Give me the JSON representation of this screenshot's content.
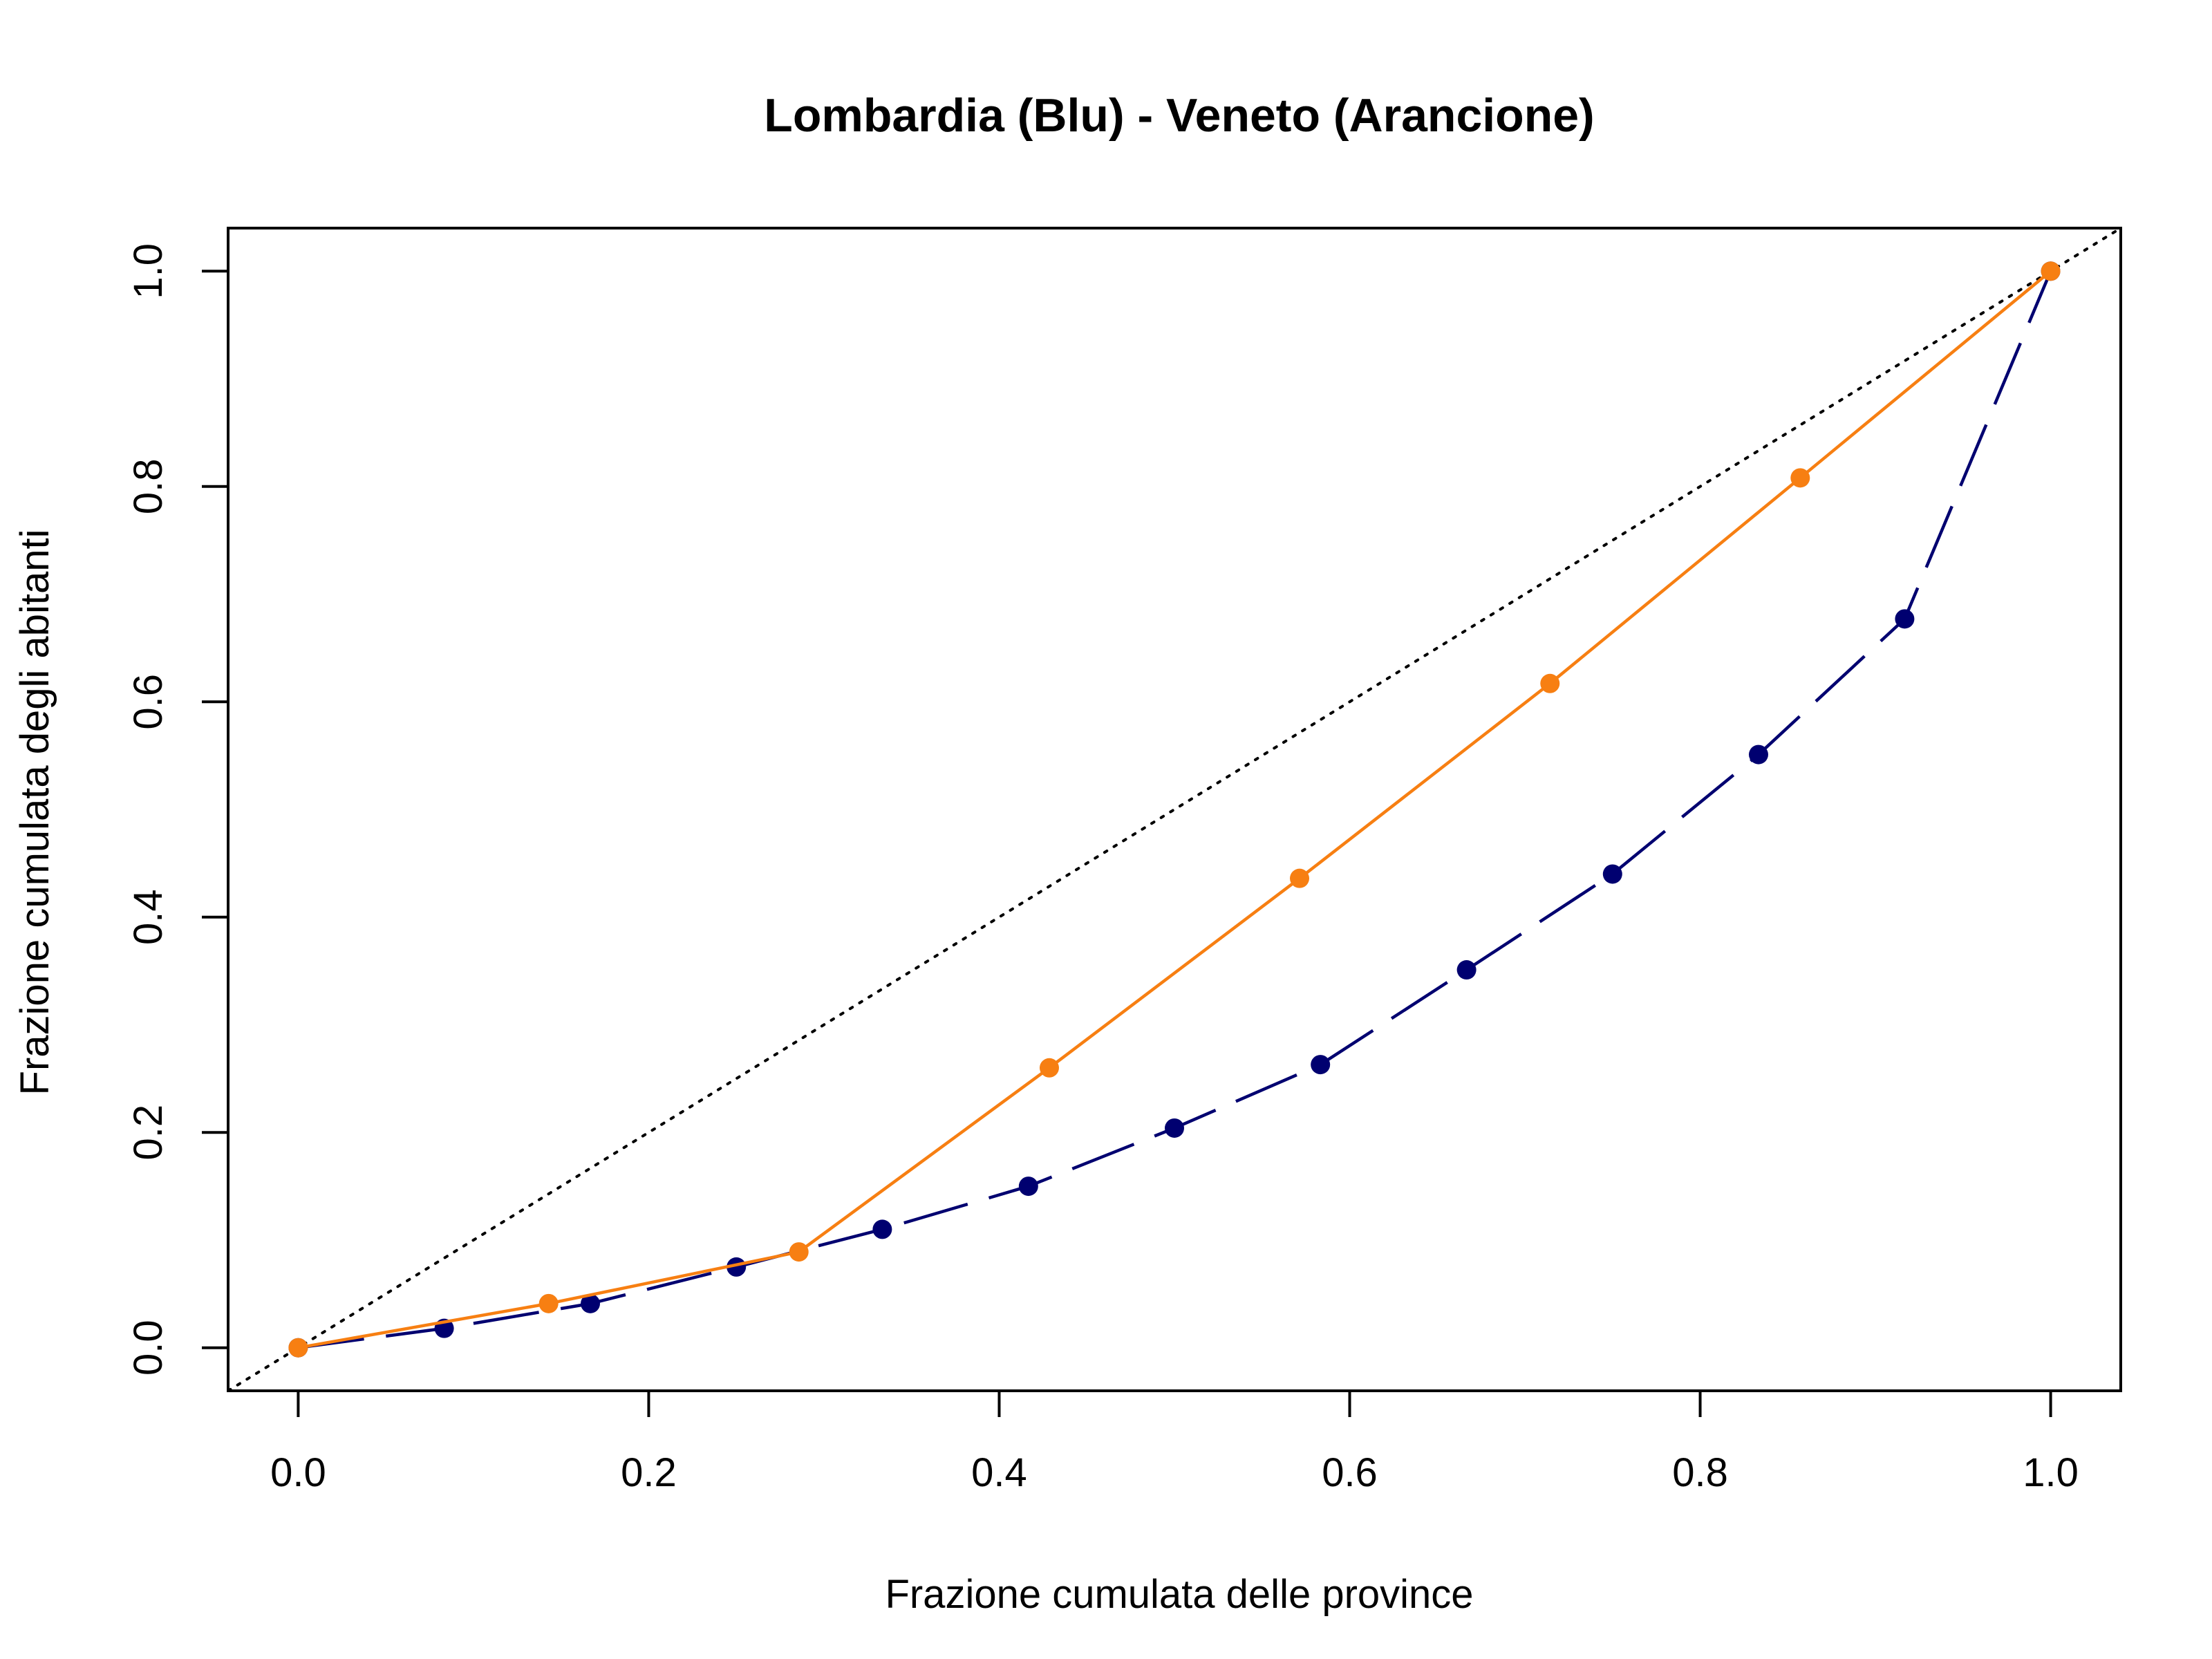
{
  "chart_data": {
    "type": "line",
    "title": "Lombardia (Blu) - Veneto (Arancione)",
    "xlabel": "Frazione cumulata delle province",
    "ylabel": "Frazione cumulata degli abitanti",
    "xlim": [
      -0.04,
      1.04
    ],
    "ylim": [
      -0.04,
      1.04
    ],
    "x_ticks": [
      "0.0",
      "0.2",
      "0.4",
      "0.6",
      "0.8",
      "1.0"
    ],
    "y_ticks": [
      "0.0",
      "0.2",
      "0.4",
      "0.6",
      "0.8",
      "1.0"
    ],
    "grid": false,
    "reference_line": {
      "style": "dotted",
      "color": "#000000",
      "from": [
        0,
        0
      ],
      "to": [
        1,
        1
      ]
    },
    "series": [
      {
        "color": "#000070",
        "line_style": "long-dash",
        "x": [
          0.0,
          0.0833,
          0.1667,
          0.25,
          0.3333,
          0.4167,
          0.5,
          0.5833,
          0.6667,
          0.75,
          0.8333,
          0.9167,
          1.0
        ],
        "y": [
          0.0,
          0.018,
          0.041,
          0.075,
          0.11,
          0.15,
          0.204,
          0.263,
          0.351,
          0.44,
          0.551,
          0.677,
          1.0
        ]
      },
      {
        "color": "#F77F12",
        "line_style": "solid",
        "x": [
          0.0,
          0.1429,
          0.2857,
          0.4286,
          0.5714,
          0.7143,
          0.8571,
          1.0
        ],
        "y": [
          0.0,
          0.041,
          0.089,
          0.26,
          0.436,
          0.617,
          0.808,
          1.0
        ]
      }
    ]
  }
}
